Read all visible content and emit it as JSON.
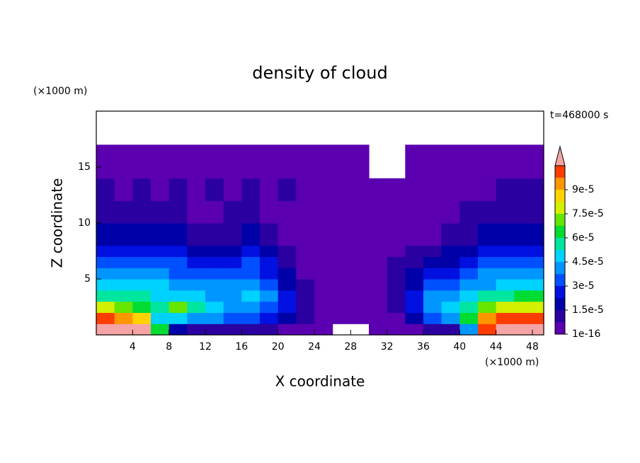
{
  "chart_data": {
    "type": "contour",
    "title": "density of cloud",
    "x_label": "X coordinate",
    "y_label": "Z coordinate",
    "x_unit": "(×1000 m)",
    "y_unit": "(×1000 m)",
    "time_label": "t=468000 s",
    "xlim": [
      0,
      49.25
    ],
    "ylim": [
      0,
      20
    ],
    "xticks": [
      4,
      8,
      12,
      16,
      20,
      24,
      28,
      32,
      36,
      40,
      44,
      48
    ],
    "yticks": [
      5,
      10,
      15
    ],
    "x_edges": [
      0,
      2,
      4,
      6,
      8,
      10,
      12,
      14,
      16,
      18,
      20,
      22,
      24,
      26,
      28,
      30,
      32,
      34,
      36,
      38,
      40,
      42,
      44,
      46,
      48,
      49.25
    ],
    "z_edges": [
      0,
      1,
      2,
      3,
      4,
      5,
      6,
      7,
      8,
      10,
      12,
      14,
      17
    ],
    "z": [
      [
        0.00011,
        0.00011,
        0.00011,
        6.375e-05,
        1.875e-05,
        1.125e-05,
        1.125e-05,
        1.125e-05,
        1.125e-05,
        1.125e-05,
        3.75e-06,
        3.75e-06,
        3.75e-06,
        0,
        0,
        3.75e-06,
        3.75e-06,
        3.75e-06,
        1.125e-05,
        1.125e-05,
        4.125e-05,
        0.00010125,
        0.00011,
        0.00011,
        0.00011
      ],
      [
        0.00010125,
        9.375e-05,
        8.625e-05,
        4.875e-05,
        4.875e-05,
        4.125e-05,
        4.125e-05,
        3.375e-05,
        3.375e-05,
        2.625e-05,
        1.875e-05,
        1.125e-05,
        3.75e-06,
        3.75e-06,
        3.75e-06,
        3.75e-06,
        3.75e-06,
        1.875e-05,
        3.375e-05,
        4.125e-05,
        6.375e-05,
        9.375e-05,
        0.00010125,
        0.00010125,
        0.00010125
      ],
      [
        7.875e-05,
        7.125e-05,
        6.375e-05,
        5.625e-05,
        7.125e-05,
        5.625e-05,
        4.875e-05,
        4.125e-05,
        4.125e-05,
        3.375e-05,
        2.625e-05,
        1.125e-05,
        3.75e-06,
        3.75e-06,
        3.75e-06,
        3.75e-06,
        1.125e-05,
        2.625e-05,
        4.125e-05,
        4.875e-05,
        5.625e-05,
        7.125e-05,
        7.875e-05,
        7.875e-05,
        7.875e-05
      ],
      [
        5.625e-05,
        5.625e-05,
        5.625e-05,
        4.875e-05,
        4.875e-05,
        4.875e-05,
        4.125e-05,
        4.125e-05,
        4.875e-05,
        4.125e-05,
        2.625e-05,
        1.125e-05,
        3.75e-06,
        3.75e-06,
        3.75e-06,
        3.75e-06,
        1.125e-05,
        2.625e-05,
        4.125e-05,
        4.125e-05,
        4.875e-05,
        5.625e-05,
        5.625e-05,
        6.375e-05,
        6.375e-05
      ],
      [
        4.875e-05,
        4.875e-05,
        4.875e-05,
        4.875e-05,
        4.125e-05,
        4.125e-05,
        4.125e-05,
        4.125e-05,
        4.125e-05,
        3.375e-05,
        1.875e-05,
        1.125e-05,
        3.75e-06,
        3.75e-06,
        3.75e-06,
        3.75e-06,
        1.125e-05,
        1.875e-05,
        3.375e-05,
        3.375e-05,
        4.125e-05,
        4.125e-05,
        4.875e-05,
        4.875e-05,
        4.875e-05
      ],
      [
        4.125e-05,
        4.125e-05,
        4.125e-05,
        4.125e-05,
        3.375e-05,
        3.375e-05,
        3.375e-05,
        3.375e-05,
        3.375e-05,
        2.625e-05,
        1.875e-05,
        3.75e-06,
        3.75e-06,
        3.75e-06,
        3.75e-06,
        3.75e-06,
        1.125e-05,
        1.875e-05,
        2.625e-05,
        2.625e-05,
        3.375e-05,
        4.125e-05,
        4.125e-05,
        4.125e-05,
        4.125e-05
      ],
      [
        3.375e-05,
        3.375e-05,
        3.375e-05,
        3.375e-05,
        3.375e-05,
        2.625e-05,
        2.625e-05,
        2.625e-05,
        3.375e-05,
        2.625e-05,
        1.125e-05,
        3.75e-06,
        3.75e-06,
        3.75e-06,
        3.75e-06,
        3.75e-06,
        1.125e-05,
        1.125e-05,
        1.875e-05,
        1.875e-05,
        2.625e-05,
        3.375e-05,
        3.375e-05,
        3.375e-05,
        3.375e-05
      ],
      [
        2.625e-05,
        2.625e-05,
        2.625e-05,
        2.625e-05,
        2.625e-05,
        1.875e-05,
        1.875e-05,
        1.875e-05,
        2.625e-05,
        1.875e-05,
        1.125e-05,
        3.75e-06,
        3.75e-06,
        3.75e-06,
        3.75e-06,
        3.75e-06,
        3.75e-06,
        1.125e-05,
        1.125e-05,
        1.875e-05,
        1.875e-05,
        2.625e-05,
        2.625e-05,
        2.625e-05,
        2.625e-05
      ],
      [
        1.875e-05,
        1.875e-05,
        1.875e-05,
        1.875e-05,
        1.875e-05,
        1.125e-05,
        1.125e-05,
        1.125e-05,
        1.875e-05,
        1.125e-05,
        3.75e-06,
        3.75e-06,
        3.75e-06,
        3.75e-06,
        3.75e-06,
        3.75e-06,
        3.75e-06,
        3.75e-06,
        3.75e-06,
        1.125e-05,
        1.125e-05,
        1.875e-05,
        1.875e-05,
        1.875e-05,
        1.875e-05
      ],
      [
        1.125e-05,
        1.125e-05,
        1.125e-05,
        1.125e-05,
        1.125e-05,
        3.75e-06,
        3.75e-06,
        1.125e-05,
        1.125e-05,
        3.75e-06,
        3.75e-06,
        3.75e-06,
        3.75e-06,
        3.75e-06,
        3.75e-06,
        3.75e-06,
        3.75e-06,
        3.75e-06,
        3.75e-06,
        3.75e-06,
        1.125e-05,
        1.125e-05,
        1.125e-05,
        1.125e-05,
        1.125e-05
      ],
      [
        1.125e-05,
        3.75e-06,
        1.125e-05,
        3.75e-06,
        1.125e-05,
        3.75e-06,
        1.125e-05,
        3.75e-06,
        1.125e-05,
        3.75e-06,
        1.125e-05,
        3.75e-06,
        3.75e-06,
        3.75e-06,
        3.75e-06,
        3.75e-06,
        3.75e-06,
        3.75e-06,
        3.75e-06,
        3.75e-06,
        3.75e-06,
        3.75e-06,
        1.125e-05,
        1.125e-05,
        1.125e-05
      ],
      [
        3.75e-06,
        3.75e-06,
        3.75e-06,
        3.75e-06,
        3.75e-06,
        3.75e-06,
        3.75e-06,
        3.75e-06,
        3.75e-06,
        3.75e-06,
        3.75e-06,
        3.75e-06,
        3.75e-06,
        3.75e-06,
        3.75e-06,
        0,
        0,
        3.75e-06,
        3.75e-06,
        3.75e-06,
        3.75e-06,
        3.75e-06,
        3.75e-06,
        3.75e-06,
        3.75e-06
      ]
    ],
    "levels": [
      1e-16,
      7.5e-06,
      1.5e-05,
      2.25e-05,
      3e-05,
      3.75e-05,
      4.5e-05,
      5.25e-05,
      6e-05,
      6.75e-05,
      7.5e-05,
      8.25e-05,
      9e-05,
      9.75e-05,
      0.000105
    ],
    "colors": [
      "#5a00b0",
      "#2a00a0",
      "#0000a8",
      "#0010e0",
      "#0050ff",
      "#0096ff",
      "#00d2ff",
      "#00e6a0",
      "#00dc32",
      "#64e600",
      "#d2f000",
      "#ffd200",
      "#ff9600",
      "#ff3c00"
    ],
    "extend_color": "#f4a4a4",
    "colorbar_lim": [
      1e-16,
      0.000105
    ],
    "colorbar_ticks": [
      {
        "value": 1e-16,
        "label": "1e-16"
      },
      {
        "value": 1.5e-05,
        "label": "1.5e-5"
      },
      {
        "value": 3e-05,
        "label": "3e-5"
      },
      {
        "value": 4.5e-05,
        "label": "4.5e-5"
      },
      {
        "value": 6e-05,
        "label": "6e-5"
      },
      {
        "value": 7.5e-05,
        "label": "7.5e-5"
      },
      {
        "value": 9e-05,
        "label": "9e-5"
      }
    ]
  }
}
